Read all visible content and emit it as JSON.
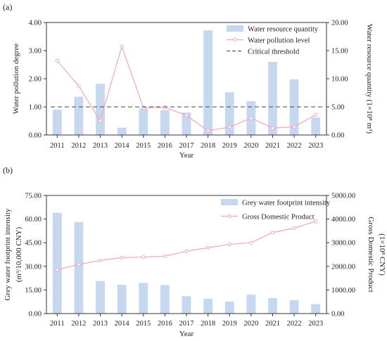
{
  "chart_data": [
    {
      "panel_label": "(a)",
      "type": "bar+line",
      "categories": [
        "2011",
        "2012",
        "2013",
        "2014",
        "2015",
        "2016",
        "2017",
        "2018",
        "2019",
        "2020",
        "2021",
        "2022",
        "2023"
      ],
      "xlabel": "Year",
      "ylabel_left": "Water pollution degree",
      "ylabel_right": "Water resource quantity (1×10⁸ m³)",
      "ylim_left": [
        0,
        4
      ],
      "ylim_right": [
        0,
        20
      ],
      "yticks_left": [
        "0.00",
        "1.00",
        "2.00",
        "3.00",
        "4.00"
      ],
      "yticks_right": [
        "0.00",
        "5.00",
        "10.00",
        "15.00",
        "20.00"
      ],
      "legend_position": "top-right",
      "series": [
        {
          "name": "Water resource quantity",
          "kind": "bar",
          "axis": "right",
          "color": "#c6d8f0",
          "values": [
            4.5,
            6.8,
            9.1,
            1.3,
            4.7,
            4.4,
            4.0,
            18.6,
            7.6,
            6.0,
            13.0,
            9.9,
            3.1
          ]
        },
        {
          "name": "Water pollution level",
          "kind": "line",
          "axis": "left",
          "color": "#f4a6b6",
          "values": [
            2.64,
            1.74,
            0.51,
            3.15,
            0.97,
            0.98,
            0.7,
            0.15,
            0.28,
            0.6,
            0.25,
            0.29,
            0.72
          ]
        },
        {
          "name": "Critical threshold",
          "kind": "hline",
          "axis": "left",
          "color": "#444444",
          "value": 1.0
        }
      ]
    },
    {
      "panel_label": "(b)",
      "type": "bar+line",
      "categories": [
        "2011",
        "2012",
        "2013",
        "2014",
        "2015",
        "2016",
        "2017",
        "2018",
        "2019",
        "2020",
        "2021",
        "2022",
        "2023"
      ],
      "xlabel": "Year",
      "ylabel_left_line1": "Grey water footprint intensity",
      "ylabel_left_line2": "(m³/10,000 CNY)",
      "ylabel_right_line1": "Gross Domestic Product",
      "ylabel_right_line2": "(1×10⁸ CNY)",
      "ylim_left": [
        0,
        75
      ],
      "ylim_right": [
        0,
        5000
      ],
      "yticks_left": [
        "0.00",
        "15.00",
        "30.00",
        "45.00",
        "60.00",
        "75.00"
      ],
      "yticks_right": [
        "0.00",
        "1000.00",
        "2000.00",
        "3000.00",
        "4000.00",
        "5000.00"
      ],
      "legend_position": "top-right",
      "series": [
        {
          "name": "Grey water footprint intensity",
          "kind": "bar",
          "axis": "left",
          "color": "#c6d8f0",
          "values": [
            64.0,
            58.2,
            20.7,
            18.3,
            19.5,
            18.1,
            11.0,
            9.4,
            7.6,
            12.0,
            9.8,
            8.5,
            6.0
          ]
        },
        {
          "name": "Gross Domestic Product",
          "kind": "line",
          "axis": "right",
          "color": "#f4a6b6",
          "values": [
            1850,
            2080,
            2250,
            2370,
            2390,
            2430,
            2640,
            2790,
            2930,
            3000,
            3430,
            3620,
            3900
          ]
        }
      ]
    }
  ]
}
